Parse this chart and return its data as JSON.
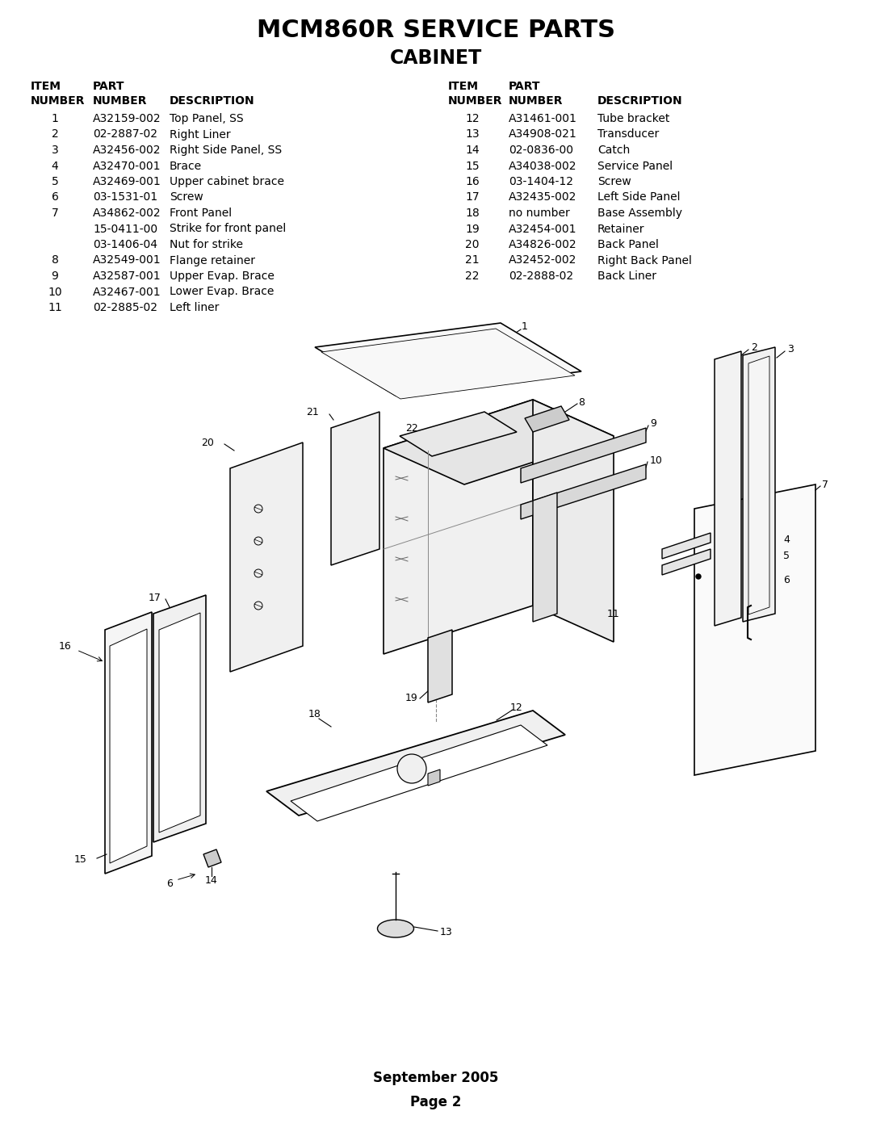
{
  "title1": "MCM860R SERVICE PARTS",
  "title2": "CABINET",
  "bg_color": "#ffffff",
  "parts_left": [
    [
      "1",
      "A32159-002",
      "Top Panel, SS"
    ],
    [
      "2",
      "02-2887-02",
      "Right Liner"
    ],
    [
      "3",
      "A32456-002",
      "Right Side Panel, SS"
    ],
    [
      "4",
      "A32470-001",
      "Brace"
    ],
    [
      "5",
      "A32469-001",
      "Upper cabinet brace"
    ],
    [
      "6",
      "03-1531-01",
      "Screw"
    ],
    [
      "7",
      "A34862-002",
      "Front Panel"
    ],
    [
      "",
      "15-0411-00",
      "Strike for front panel"
    ],
    [
      "",
      "03-1406-04",
      "Nut for strike"
    ],
    [
      "8",
      "A32549-001",
      "Flange retainer"
    ],
    [
      "9",
      "A32587-001",
      "Upper Evap. Brace"
    ],
    [
      "10",
      "A32467-001",
      "Lower Evap. Brace"
    ],
    [
      "11",
      "02-2885-02",
      "Left liner"
    ]
  ],
  "parts_right": [
    [
      "12",
      "A31461-001",
      "Tube bracket"
    ],
    [
      "13",
      "A34908-021",
      "Transducer"
    ],
    [
      "14",
      "02-0836-00",
      "Catch"
    ],
    [
      "15",
      "A34038-002",
      "Service Panel"
    ],
    [
      "16",
      "03-1404-12",
      "Screw"
    ],
    [
      "17",
      "A32435-002",
      "Left Side Panel"
    ],
    [
      "18",
      "no number",
      "Base Assembly"
    ],
    [
      "19",
      "A32454-001",
      "Retainer"
    ],
    [
      "20",
      "A34826-002",
      "Back Panel"
    ],
    [
      "21",
      "A32452-002",
      "Right Back Panel"
    ],
    [
      "22",
      "02-2888-02",
      "Back Liner"
    ]
  ],
  "footer": "September 2005\nPage 2",
  "text_color": "#000000",
  "title_fontsize": 22,
  "subtitle_fontsize": 17,
  "table_fontsize": 10,
  "footer_fontsize": 12
}
